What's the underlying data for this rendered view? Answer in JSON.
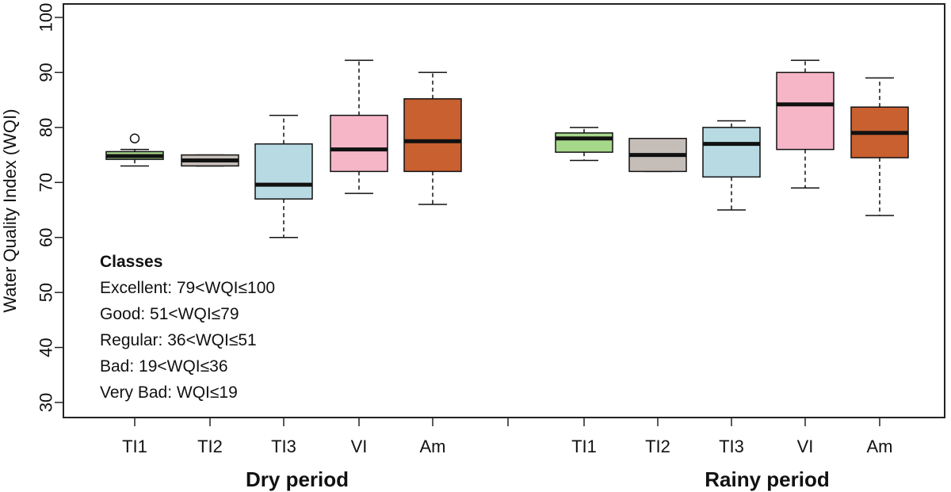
{
  "chart_data": {
    "type": "boxplot",
    "ylabel": "Water Quality Index (WQI)",
    "ylim": [
      30,
      100
    ],
    "yticks": [
      30,
      40,
      50,
      60,
      70,
      80,
      90,
      100
    ],
    "groups": [
      {
        "label": "Dry period",
        "boxes": [
          {
            "name": "TI1",
            "color": "#a6d88a",
            "whisker_low": 73,
            "q1": 74.2,
            "median": 74.8,
            "q3": 75.6,
            "whisker_high": 76,
            "outliers": [
              78
            ]
          },
          {
            "name": "TI2",
            "color": "#c5bdb8",
            "whisker_low": 73,
            "q1": 73,
            "median": 74,
            "q3": 75,
            "whisker_high": 75,
            "outliers": []
          },
          {
            "name": "TI3",
            "color": "#b8dbe3",
            "whisker_low": 60,
            "q1": 67,
            "median": 69.6,
            "q3": 77,
            "whisker_high": 82.2,
            "outliers": []
          },
          {
            "name": "VI",
            "color": "#f6b6c8",
            "whisker_low": 68,
            "q1": 72,
            "median": 76,
            "q3": 82.2,
            "whisker_high": 92.2,
            "outliers": []
          },
          {
            "name": "Am",
            "color": "#c96030",
            "whisker_low": 66,
            "q1": 72,
            "median": 77.5,
            "q3": 85.2,
            "whisker_high": 90,
            "outliers": []
          }
        ]
      },
      {
        "label": "Rainy period",
        "boxes": [
          {
            "name": "TI1",
            "color": "#a6d88a",
            "whisker_low": 74,
            "q1": 75.5,
            "median": 78,
            "q3": 79,
            "whisker_high": 80,
            "outliers": []
          },
          {
            "name": "TI2",
            "color": "#c5bdb8",
            "whisker_low": 72,
            "q1": 72,
            "median": 75,
            "q3": 78,
            "whisker_high": 78,
            "outliers": []
          },
          {
            "name": "TI3",
            "color": "#b8dbe3",
            "whisker_low": 65,
            "q1": 71,
            "median": 77,
            "q3": 80,
            "whisker_high": 81.2,
            "outliers": []
          },
          {
            "name": "VI",
            "color": "#f6b6c8",
            "whisker_low": 69,
            "q1": 76,
            "median": 84.2,
            "q3": 90,
            "whisker_high": 92.2,
            "outliers": []
          },
          {
            "name": "Am",
            "color": "#c96030",
            "whisker_low": 64,
            "q1": 74.5,
            "median": 79,
            "q3": 83.7,
            "whisker_high": 89,
            "outliers": []
          }
        ]
      }
    ],
    "legend": {
      "title": "Classes",
      "items": [
        "Excellent: 79<WQI≤100",
        "Good: 51<WQI≤79",
        "Regular: 36<WQI≤51",
        "Bad: 19<WQI≤36",
        "Very Bad: WQI≤19"
      ],
      "position": "bottom-left"
    }
  }
}
